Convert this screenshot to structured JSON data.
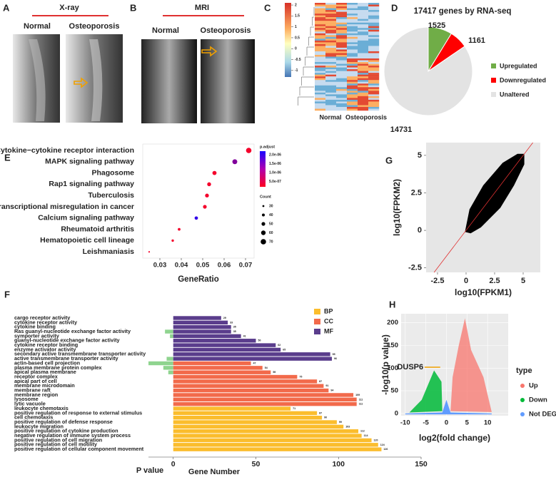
{
  "panel_labels": [
    "A",
    "B",
    "C",
    "D",
    "E",
    "F",
    "G",
    "H"
  ],
  "panel_a": {
    "title": "X-ray",
    "labels": [
      "Normal",
      "Osteoporosis"
    ]
  },
  "panel_b": {
    "title": "MRI",
    "labels": [
      "Normal",
      "Osteoporosis"
    ]
  },
  "chart_data": [
    {
      "type": "heatmap",
      "categories": [
        "Normal",
        "Osteoporosis"
      ],
      "zlim": [
        -1.3,
        2.1
      ],
      "colorbar_ticks": [
        2,
        1.5,
        1,
        0.5,
        0,
        -0.5,
        -1
      ]
    },
    {
      "type": "pie",
      "title": "17417 genes by RNA-seq",
      "categories": [
        "Upregulated",
        "Downregulated",
        "Unaltered"
      ],
      "values": [
        1525,
        1161,
        14731
      ],
      "colors": [
        "#70ad47",
        "#ff0000",
        "#e3e3e3"
      ]
    },
    {
      "type": "dot",
      "categories": [
        "Cytokine−cytokine receptor interaction",
        "MAPK signaling pathway",
        "Phagosome",
        "Rap1 signaling pathway",
        "Tuberculosis",
        "Transcriptional misregulation in cancer",
        "Calcium signaling pathway",
        "Rheumatoid arthritis",
        "Hematopoietic cell lineage",
        "Leishmaniasis"
      ],
      "values": [
        0.0715,
        0.065,
        0.0555,
        0.053,
        0.052,
        0.051,
        0.047,
        0.039,
        0.036,
        0.025
      ],
      "counts": [
        70,
        64,
        55,
        52,
        51,
        50,
        46,
        38,
        35,
        25
      ],
      "p_adjust": [
        3e-07,
        1.3e-06,
        3e-07,
        3e-07,
        3e-07,
        3e-07,
        2e-06,
        3e-07,
        3e-07,
        3e-07
      ],
      "xlim": [
        0.022,
        0.074
      ],
      "xticks": [
        0.03,
        0.04,
        0.05,
        0.06,
        0.07
      ],
      "xlabel": "GeneRatio",
      "color_legend_title": "p.adjust",
      "color_lim": [
        2e-07,
        2.2e-06
      ],
      "color_low": "#ff0020",
      "color_high": "#1a00ff",
      "color_ticks": [
        {
          "value": 2e-06,
          "label": "2.0e-06"
        },
        {
          "value": 1.5e-06,
          "label": "1.5e-06"
        },
        {
          "value": 1e-06,
          "label": "1.0e-06"
        },
        {
          "value": 5e-07,
          "label": "5.0e-07"
        }
      ],
      "size_legend_title": "Count",
      "size_ticks": [
        30,
        40,
        50,
        60,
        70
      ]
    },
    {
      "type": "barh",
      "categories": [
        "cargo receptor activity",
        "cytokine receptor activity",
        "cytokine binding",
        "Ras guanyl-nucleotide exchange factor activity",
        "symporter activity",
        "guanyl-nucleotide exchange factor activity",
        "cytokine receptor binding",
        "enzyme activator activity",
        "secondary active transmembrane transporter activity",
        "active transmembrane transporter activity",
        "actin-based cell projection",
        "plasma membrane protein complex",
        "apical plasma membrane",
        "receptor complex",
        "apical part of cell",
        "membrane microdomain",
        "membrane raft",
        "membrane region",
        "lysosome",
        "lytic vacuole",
        "leukocyte chemotaxis",
        "positive regulation of response to external stimulus",
        "cell chemotaxis",
        "positive regulation of defense response",
        "leukocyte migration",
        "positive regulation of cytokine production",
        "negative regulation of immune system process",
        "positive regulation of cell migration",
        "positive regulation of cell motility",
        "positive regulation of cellular component movement"
      ],
      "series": [
        {
          "name": "BP",
          "color": "#fbbd2d",
          "values": [
            null,
            null,
            null,
            null,
            null,
            null,
            null,
            null,
            null,
            null,
            null,
            null,
            null,
            null,
            null,
            null,
            null,
            null,
            null,
            null,
            71,
            87,
            90,
            99,
            103,
            112,
            114,
            120,
            124,
            126
          ]
        },
        {
          "name": "CC",
          "color": "#f26a4b",
          "values": [
            null,
            null,
            null,
            null,
            null,
            null,
            null,
            null,
            null,
            null,
            47,
            54,
            59,
            75,
            87,
            91,
            94,
            109,
            111,
            111,
            null,
            null,
            null,
            null,
            null,
            null,
            null,
            null,
            null,
            null
          ]
        },
        {
          "name": "MF",
          "color": "#5a3d8c",
          "values": [
            29,
            33,
            35,
            35,
            41,
            50,
            62,
            65,
            95,
            96,
            null,
            null,
            null,
            null,
            null,
            null,
            null,
            null,
            null,
            null,
            null,
            null,
            null,
            null,
            null,
            null,
            null,
            null,
            null,
            null
          ]
        }
      ],
      "p_value_bars": [
        null,
        null,
        null,
        -5,
        -2,
        null,
        null,
        null,
        null,
        -4,
        -15,
        -6,
        -3,
        null,
        null,
        null,
        null,
        null,
        null,
        null,
        null,
        null,
        null,
        null,
        null,
        null,
        null,
        null,
        null,
        null
      ],
      "p_value_color": "#8fd48f",
      "p_value_label": "P value",
      "xlim": [
        -15,
        150
      ],
      "xticks": [
        0,
        50,
        100,
        150
      ],
      "xlabel": "Gene Number"
    },
    {
      "type": "scatter",
      "xlabel": "log10(FPKM1)",
      "ylabel": "log10(FPKM2)",
      "xlim": [
        -3.5,
        6.5
      ],
      "ylim": [
        -2.8,
        5.85
      ],
      "xticks": [
        -2.5,
        0,
        2.5,
        5
      ],
      "yticks": [
        -2.5,
        0,
        2.5,
        5
      ]
    },
    {
      "type": "volcano",
      "xlabel": "log2(fold change)",
      "ylabel": "-log10(p value)",
      "xlim": [
        -11,
        15
      ],
      "ylim": [
        -5,
        220
      ],
      "xticks": [
        -10,
        -5,
        0,
        5,
        10
      ],
      "yticks": [
        0,
        50,
        100,
        150,
        200
      ],
      "legend_title": "type",
      "series": [
        {
          "name": "Up",
          "color": "#f8766d"
        },
        {
          "name": "Down",
          "color": "#00ba38"
        },
        {
          "name": "Not DEG",
          "color": "#619cff"
        }
      ],
      "annotation": "DUSP6"
    }
  ]
}
